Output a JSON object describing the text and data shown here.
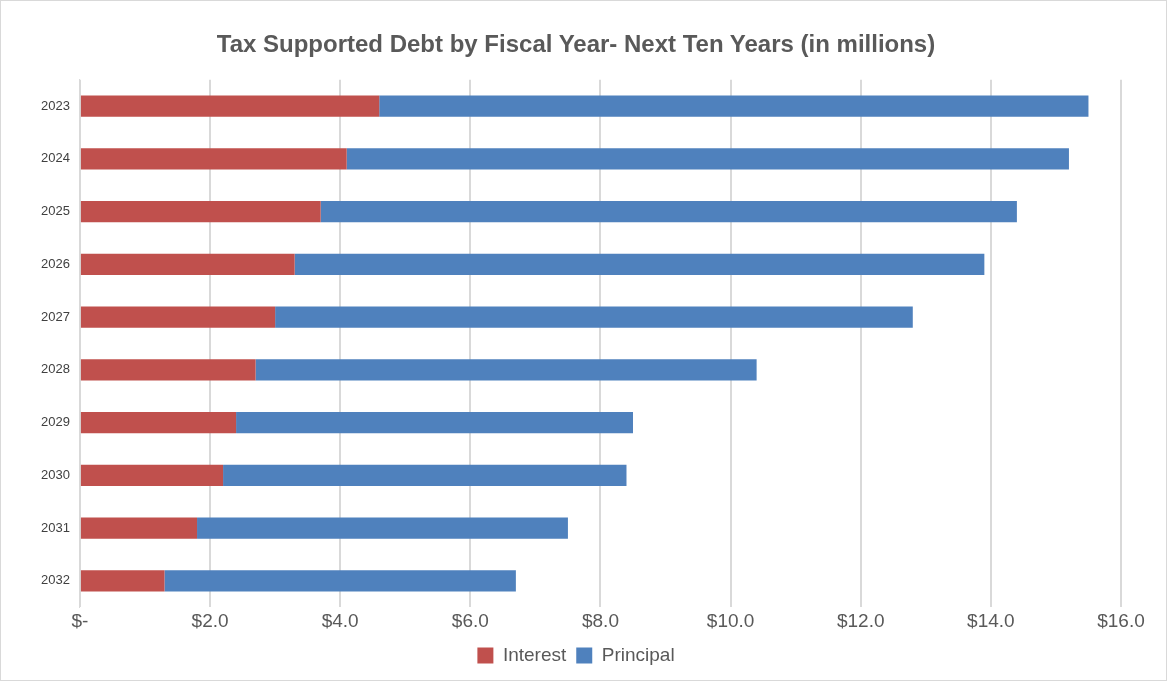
{
  "chart_data": {
    "type": "bar",
    "orientation": "horizontal",
    "stacked": true,
    "title": "Tax Supported Debt by Fiscal Year- Next Ten Years (in millions)",
    "categories": [
      "2023",
      "2024",
      "2025",
      "2026",
      "2027",
      "2028",
      "2029",
      "2030",
      "2031",
      "2032"
    ],
    "series": [
      {
        "name": "Interest",
        "color": "#c0504d",
        "values": [
          4.6,
          4.1,
          3.7,
          3.3,
          3.0,
          2.7,
          2.4,
          2.2,
          1.8,
          1.3
        ]
      },
      {
        "name": "Principal",
        "color": "#4f81bd",
        "values": [
          10.9,
          11.1,
          10.7,
          10.6,
          9.8,
          7.7,
          6.1,
          6.2,
          5.7,
          5.4
        ]
      }
    ],
    "xlim": [
      0,
      16
    ],
    "xticks": [
      {
        "value": 0,
        "label": "$-"
      },
      {
        "value": 2,
        "label": "$2.0"
      },
      {
        "value": 4,
        "label": "$4.0"
      },
      {
        "value": 6,
        "label": "$6.0"
      },
      {
        "value": 8,
        "label": "$8.0"
      },
      {
        "value": 10,
        "label": "$10.0"
      },
      {
        "value": 12,
        "label": "$12.0"
      },
      {
        "value": 14,
        "label": "$14.0"
      },
      {
        "value": 16,
        "label": "$16.0"
      }
    ],
    "grid": "x",
    "legend": "bottom"
  }
}
